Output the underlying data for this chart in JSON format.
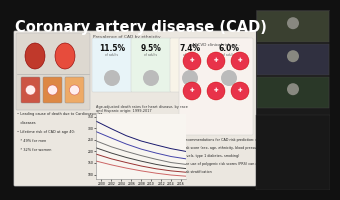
{
  "title": "Coronary artery disease (CAD)",
  "bg_color": "#111111",
  "slide_bg": "#ebe7e0",
  "title_color": "#ffffff",
  "title_fontsize": 10.5,
  "prevalence_title": "Prevalence of CAD by ethnicity",
  "prevalence_values": [
    "11.5%",
    "9.5%",
    "7.4%",
    "6.0%"
  ],
  "ascvd_icon_color": "#e8334a",
  "bullet_texts": [
    "• Leading cause of death due to Cardiovascular",
    "   diseases",
    "• Lifetime risk of CAD at age 40:",
    "   * 49% for men",
    "   * 32% for women"
  ],
  "bullet_texts2": [
    "• Recommendations for CAD risk prediction: clinical",
    "   risk score (sex, age, ethnicity, blood pressure, lipid",
    "   levels, type 1 diabetes, smoking)",
    "• The use of polygenic risk scores (PRS) can enhance",
    "   risk stratification"
  ],
  "chart_title": "Age-adjusted death rates for heart disease, by race\nand Hispanic origin: 1999-2017",
  "line_colors": [
    "#1a1a6e",
    "#4444aa",
    "#777777",
    "#444444",
    "#993333",
    "#cc6666"
  ],
  "video_colors": [
    "#3a4030",
    "#303040",
    "#2a3828",
    "#303030"
  ],
  "heart_bg": "#e0d8d0",
  "heart_color1": "#c0392b",
  "heart_color2": "#e74c3c",
  "artery_colors": [
    "#cc5544",
    "#dd8844",
    "#eeaa66"
  ]
}
